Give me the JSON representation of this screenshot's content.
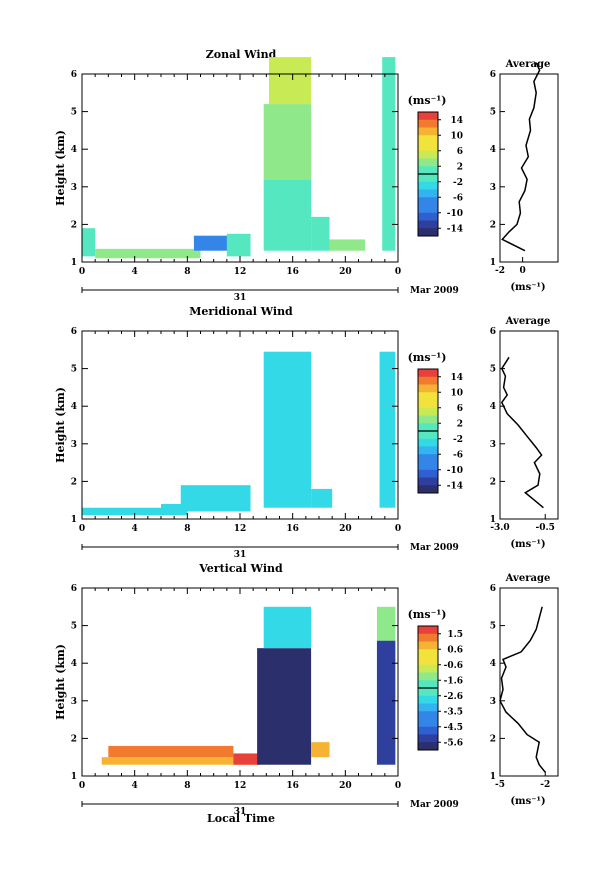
{
  "figure": {
    "x_label": "Local Time",
    "y_label": "Height (km)",
    "x_ticks": [
      "0",
      "4",
      "8",
      "12",
      "16",
      "20",
      "0"
    ],
    "y_ticks": [
      "1",
      "2",
      "3",
      "4",
      "5",
      "6"
    ],
    "date_day": "31",
    "date_month": "Mar 2009",
    "avg_title": "Average",
    "unit": "(ms⁻¹)",
    "avg_unit": "(ms⁻¹)"
  },
  "chart_data": [
    {
      "type": "heatmap",
      "title": "Zonal Wind",
      "xlabel": "Local Time",
      "ylabel": "Height (km)",
      "xlim": [
        0,
        24
      ],
      "ylim": [
        1,
        6
      ],
      "colorbar_label": "(ms⁻¹)",
      "colorbar_ticks": [
        "14",
        "10",
        "6",
        "2",
        "-2",
        "-6",
        "-10",
        "-14"
      ],
      "colorbar_range": [
        -16,
        16
      ],
      "regions": [
        {
          "x0": 0,
          "x1": 1,
          "y0": 1.15,
          "y1": 1.9,
          "v": 1
        },
        {
          "x0": 1,
          "x1": 9,
          "y0": 1.1,
          "y1": 1.35,
          "v": 2
        },
        {
          "x0": 8.5,
          "x1": 11.5,
          "y0": 1.3,
          "y1": 1.7,
          "v": -8
        },
        {
          "x0": 11,
          "x1": 12.8,
          "y0": 1.15,
          "y1": 1.75,
          "v": 0
        },
        {
          "x0": 13.8,
          "x1": 17.4,
          "y0": 1.3,
          "y1": 3.2,
          "v": -1
        },
        {
          "x0": 13.8,
          "x1": 17.4,
          "y0": 3.2,
          "y1": 5.2,
          "v": 3
        },
        {
          "x0": 14.2,
          "x1": 17.4,
          "y0": 5.2,
          "y1": 6.45,
          "v": 6
        },
        {
          "x0": 17.4,
          "x1": 18.8,
          "y0": 1.3,
          "y1": 2.2,
          "v": 0
        },
        {
          "x0": 18.8,
          "x1": 21.5,
          "y0": 1.3,
          "y1": 1.6,
          "v": 3
        },
        {
          "x0": 22.8,
          "x1": 23.8,
          "y0": 1.3,
          "y1": 6.45,
          "v": 1
        }
      ],
      "average": {
        "xlim": [
          -2,
          2
        ],
        "xticks": [
          "-2",
          "0"
        ],
        "ylim": [
          1,
          6
        ],
        "z": [
          1.3,
          1.6,
          1.8,
          2.0,
          2.3,
          2.6,
          2.9,
          3.2,
          3.5,
          3.8,
          4.1,
          4.5,
          4.8,
          5.1,
          5.5,
          5.8,
          6.1,
          6.3
        ],
        "v": [
          0.2,
          -1.8,
          -1.2,
          -0.5,
          -0.2,
          -0.3,
          0.2,
          0.4,
          -0.1,
          0.5,
          0.3,
          0.7,
          0.6,
          1.0,
          1.2,
          1.0,
          1.5,
          1.2
        ]
      }
    },
    {
      "type": "heatmap",
      "title": "Meridional Wind",
      "xlabel": "Local Time",
      "ylabel": "Height (km)",
      "xlim": [
        0,
        24
      ],
      "ylim": [
        1,
        6
      ],
      "colorbar_label": "(ms⁻¹)",
      "colorbar_ticks": [
        "14",
        "10",
        "6",
        "2",
        "-2",
        "-6",
        "-10",
        "-14"
      ],
      "colorbar_range": [
        -16,
        16
      ],
      "regions": [
        {
          "x0": 0,
          "x1": 6,
          "y0": 1.1,
          "y1": 1.3,
          "v": -2
        },
        {
          "x0": 6,
          "x1": 8,
          "y0": 1.1,
          "y1": 1.4,
          "v": -3
        },
        {
          "x0": 7.5,
          "x1": 12.8,
          "y0": 1.2,
          "y1": 1.9,
          "v": -3
        },
        {
          "x0": 13.8,
          "x1": 17.4,
          "y0": 1.3,
          "y1": 3.5,
          "v": -2
        },
        {
          "x0": 13.8,
          "x1": 17.4,
          "y0": 3.5,
          "y1": 5.45,
          "v": -4
        },
        {
          "x0": 17.4,
          "x1": 19,
          "y0": 1.3,
          "y1": 1.8,
          "v": -2
        },
        {
          "x0": 22.6,
          "x1": 23.8,
          "y0": 1.3,
          "y1": 5.45,
          "v": -3
        }
      ],
      "average": {
        "xlim": [
          -3.0,
          -0.5
        ],
        "xticks": [
          "-3.0",
          "-0.5"
        ],
        "ylim": [
          1,
          6
        ],
        "z": [
          1.3,
          1.5,
          1.7,
          1.9,
          2.2,
          2.5,
          2.7,
          2.9,
          3.2,
          3.5,
          3.8,
          4.1,
          4.3,
          4.5,
          4.8,
          5.0,
          5.3
        ],
        "v": [
          -0.6,
          -1.1,
          -1.6,
          -0.9,
          -0.8,
          -1.1,
          -0.7,
          -1.0,
          -1.5,
          -2.0,
          -2.6,
          -2.9,
          -2.6,
          -2.8,
          -2.7,
          -2.9,
          -2.5
        ]
      }
    },
    {
      "type": "heatmap",
      "title": "Vertical Wind",
      "xlabel": "Local Time",
      "ylabel": "Height (km)",
      "xlim": [
        0,
        24
      ],
      "ylim": [
        1,
        6
      ],
      "colorbar_label": "(ms⁻¹)",
      "colorbar_ticks": [
        "1.5",
        "0.6",
        "-0.6",
        "-1.6",
        "-2.6",
        "-3.5",
        "-4.5",
        "-5.6"
      ],
      "colorbar_range": [
        -6,
        2
      ],
      "regions": [
        {
          "x0": 1.5,
          "x1": 13.5,
          "y0": 1.3,
          "y1": 1.5,
          "v": 0.8
        },
        {
          "x0": 2,
          "x1": 11.5,
          "y0": 1.5,
          "y1": 1.8,
          "v": 1.0
        },
        {
          "x0": 11.5,
          "x1": 13.5,
          "y0": 1.3,
          "y1": 1.6,
          "v": 1.8
        },
        {
          "x0": 13.3,
          "x1": 17.4,
          "y0": 1.3,
          "y1": 4.4,
          "v": -5.8
        },
        {
          "x0": 13.8,
          "x1": 17.4,
          "y0": 4.4,
          "y1": 5.5,
          "v": -2.5
        },
        {
          "x0": 17.4,
          "x1": 18.8,
          "y0": 1.5,
          "y1": 1.9,
          "v": 0.6
        },
        {
          "x0": 22.4,
          "x1": 23.8,
          "y0": 1.3,
          "y1": 4.6,
          "v": -5.5
        },
        {
          "x0": 22.4,
          "x1": 23.8,
          "y0": 4.6,
          "y1": 5.5,
          "v": -1.5
        }
      ],
      "average": {
        "xlim": [
          -5,
          -2
        ],
        "xticks": [
          "-5",
          "-2"
        ],
        "ylim": [
          1,
          6
        ],
        "z": [
          1.1,
          1.3,
          1.5,
          1.7,
          1.9,
          2.1,
          2.4,
          2.7,
          3.0,
          3.3,
          3.6,
          3.9,
          4.1,
          4.3,
          4.6,
          4.9,
          5.2,
          5.5
        ],
        "v": [
          -2.0,
          -2.4,
          -2.6,
          -2.5,
          -2.4,
          -3.2,
          -3.8,
          -4.6,
          -5.0,
          -4.8,
          -4.9,
          -4.6,
          -4.8,
          -3.6,
          -3.0,
          -2.6,
          -2.4,
          -2.2
        ]
      }
    }
  ]
}
